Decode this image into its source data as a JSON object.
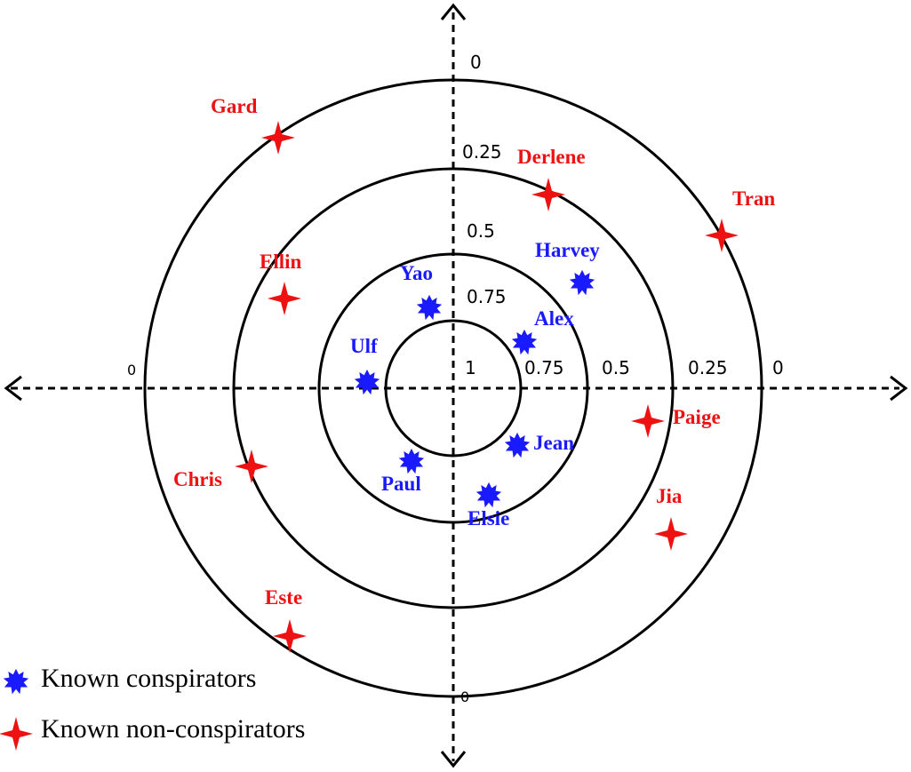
{
  "colors": {
    "conspirator": "#1a1aff",
    "non_conspirator": "#ee1111",
    "ink": "#000000"
  },
  "icons": {
    "conspirator_marker": "blue-starburst-icon",
    "non_conspirator_marker": "red-four-point-star-icon"
  },
  "ring_levels": [
    0.25,
    0.5,
    0.75,
    1
  ],
  "axis_labels": {
    "top": [
      "0",
      "0.25",
      "0.5",
      "0.75"
    ],
    "right": [
      "1",
      "0.75",
      "0.5",
      "0.25",
      "0"
    ],
    "left": "0",
    "bottom": "0"
  },
  "conspirators": [
    "Harvey",
    "Yao",
    "Alex",
    "Ulf",
    "Jean",
    "Paul",
    "Elsie"
  ],
  "non_conspirators": [
    "Gard",
    "Derlene",
    "Tran",
    "Ellin",
    "Paige",
    "Chris",
    "Jia",
    "Este"
  ],
  "legend": {
    "conspirators": "Known conspirators",
    "non_conspirators": "Known non-conspirators"
  }
}
